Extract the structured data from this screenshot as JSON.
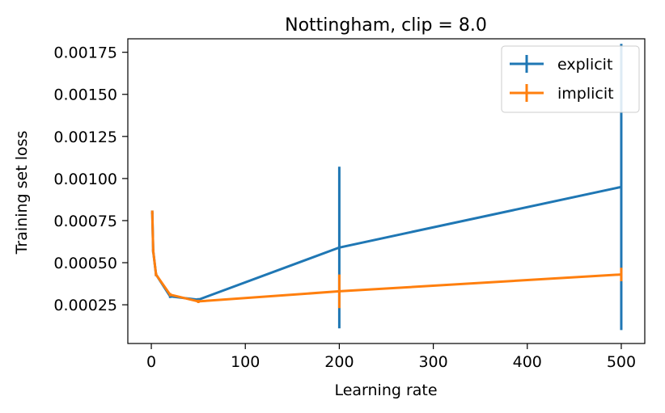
{
  "chart_data": {
    "type": "line",
    "title": "Nottingham, clip = 8.0",
    "xlabel": "Learning rate",
    "ylabel": "Training set loss",
    "xlim": [
      -25,
      525
    ],
    "ylim": [
      2e-05,
      0.00183
    ],
    "xticks": [
      0,
      100,
      200,
      300,
      400,
      500
    ],
    "xtick_labels": [
      "0",
      "100",
      "200",
      "300",
      "400",
      "500"
    ],
    "yticks": [
      0.00025,
      0.0005,
      0.00075,
      0.001,
      0.00125,
      0.0015,
      0.00175
    ],
    "ytick_labels": [
      "0.00025",
      "0.00050",
      "0.00075",
      "0.00100",
      "0.00125",
      "0.00150",
      "0.00175"
    ],
    "grid": false,
    "legend_position": "top-right",
    "series": [
      {
        "name": "explicit",
        "color": "#1f77b4",
        "x": [
          1,
          2,
          5,
          20,
          50,
          200,
          500
        ],
        "y": [
          0.0008,
          0.00057,
          0.00043,
          0.0003,
          0.00028,
          0.00059,
          0.00095
        ],
        "err": [
          1e-05,
          1e-05,
          1e-05,
          1e-05,
          1e-05,
          0.00048,
          0.00085
        ]
      },
      {
        "name": "implicit",
        "color": "#ff7f0e",
        "x": [
          1,
          2,
          5,
          20,
          50,
          200,
          500
        ],
        "y": [
          0.0008,
          0.00057,
          0.00043,
          0.00031,
          0.00027,
          0.00033,
          0.00043
        ],
        "err": [
          1e-05,
          1e-05,
          1e-05,
          1e-05,
          1e-05,
          0.0001,
          4e-05
        ]
      }
    ]
  }
}
